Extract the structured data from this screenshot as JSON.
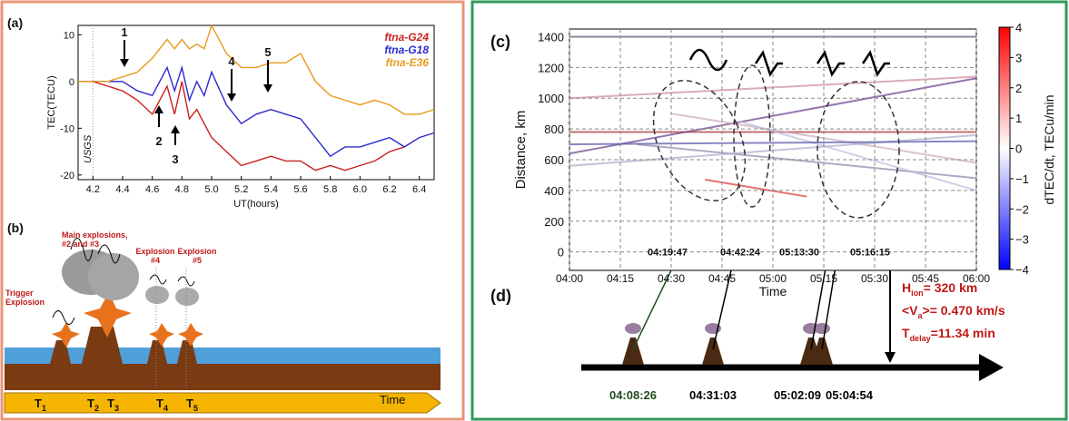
{
  "chart_data": [
    {
      "type": "line",
      "panel": "(a)",
      "ylabel": "TEC(TECU)",
      "xlabel": "UT(hours)",
      "note": "USGS",
      "arrows": [
        "1",
        "2",
        "3",
        "4",
        "5"
      ],
      "x": [
        4.1,
        4.2,
        4.3,
        4.4,
        4.5,
        4.6,
        4.7,
        4.75,
        4.8,
        4.85,
        4.9,
        4.95,
        5.0,
        5.1,
        5.2,
        5.3,
        5.4,
        5.5,
        5.6,
        5.7,
        5.8,
        5.9,
        6.0,
        6.1,
        6.2,
        6.3,
        6.4,
        6.5
      ],
      "xlim": [
        4.1,
        6.5
      ],
      "xticks": [
        4.2,
        4.4,
        4.6,
        4.8,
        {
          "value": 5,
          "label": "5.0"
        },
        5.2,
        5.4,
        5.6,
        5.8,
        {
          "value": 6,
          "label": "6.0"
        },
        6.2,
        6.4
      ],
      "ylim": [
        -21,
        12
      ],
      "yticks": [
        -20,
        -10,
        0,
        10
      ],
      "series": [
        {
          "name": "ftna-G24",
          "color": "#cc1f1f",
          "values": [
            0,
            0,
            -1,
            -2,
            -4,
            -7,
            -1,
            -7,
            0,
            -8,
            -6,
            -9,
            -12,
            -15,
            -18,
            -17,
            -16,
            -17,
            -17,
            -19,
            -18,
            -19,
            -18,
            -17,
            -15,
            -14,
            null,
            null
          ]
        },
        {
          "name": "ftna-G18",
          "color": "#2a2ad0",
          "values": [
            0,
            0,
            0,
            0,
            -2,
            -3,
            3,
            -2,
            3,
            -4,
            0,
            -3,
            2,
            -5,
            -9,
            -7,
            -6,
            -7,
            -8,
            -12,
            -16,
            -14,
            -14,
            -13,
            -12,
            -14,
            -12,
            -11
          ]
        },
        {
          "name": "ftna-E36",
          "color": "#e89a1c",
          "values": [
            0,
            0,
            0,
            1,
            2,
            5,
            9,
            7,
            9,
            7,
            8,
            7,
            12,
            6,
            3,
            3,
            4,
            4,
            6,
            0,
            -3,
            -4,
            -5,
            -4,
            -5,
            -7,
            -7,
            -6
          ]
        }
      ]
    },
    {
      "type": "heatmap",
      "panel": "(c)",
      "ylabel": "Distance, km",
      "xlabel": "Time",
      "colorbar_label": "dTEC/dt, TECu/min",
      "grid": true,
      "xlim": [
        0,
        120
      ],
      "xticks": [
        {
          "value": 0,
          "label": "04:00"
        },
        {
          "value": 15,
          "label": "04:15"
        },
        {
          "value": 30,
          "label": "04:30"
        },
        {
          "value": 45,
          "label": "04:45"
        },
        {
          "value": 60,
          "label": "05:00"
        },
        {
          "value": 75,
          "label": "05:15"
        },
        {
          "value": 90,
          "label": "05:30"
        },
        {
          "value": 105,
          "label": "05:45"
        },
        {
          "value": 120,
          "label": "06:00"
        }
      ],
      "ylim": [
        -120,
        1450
      ],
      "yticks": [
        0,
        200,
        400,
        600,
        800,
        1000,
        1200,
        1400
      ],
      "clim": [
        -4,
        4
      ],
      "cticks": [
        {
          "value": -4,
          "label": "−4"
        },
        {
          "value": -3,
          "label": "−3"
        },
        {
          "value": -2,
          "label": "−2"
        },
        {
          "value": -1,
          "label": "−1"
        },
        0,
        1,
        2,
        3,
        4
      ],
      "annotations": [
        "04:19:47",
        "04:42:24",
        "05:13:30",
        "05:16:15"
      ]
    }
  ],
  "panel_b": {
    "label": "(b)",
    "main": "Main explosions, #2 and #3",
    "trigger": "Trigger Explosion",
    "e4": "Explosion #4",
    "e5": "Explosion #5",
    "t": "T",
    "subs": [
      "1",
      "2",
      "3",
      "4",
      "5"
    ],
    "time": "Time"
  },
  "panel_d": {
    "label": "(d)",
    "h": "H",
    "h_sub": "ion",
    "h_val": "= 320 km",
    "v": "<V",
    "v_sub": "a",
    "v_val": ">= 0.470 km/s",
    "t": "T",
    "t_sub": "delay",
    "t_val": "=11.34 min",
    "times": [
      "04:08:26",
      "04:31:03",
      "05:02:09",
      "05:04:54"
    ]
  }
}
